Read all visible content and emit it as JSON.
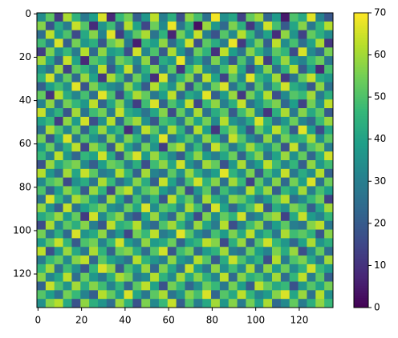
{
  "chart_data": {
    "type": "heatmap",
    "colormap": "viridis",
    "xlim": [
      -0.5,
      135.5
    ],
    "ylim": [
      135.5,
      -0.5
    ],
    "xticks": [
      0,
      20,
      40,
      60,
      80,
      100,
      120
    ],
    "yticks": [
      0,
      20,
      40,
      60,
      80,
      100,
      120
    ],
    "clim": [
      0,
      70
    ],
    "cticks": [
      0,
      10,
      20,
      30,
      40,
      50,
      60,
      70
    ],
    "z": [
      [
        34,
        52,
        12,
        61,
        45,
        28,
        39,
        66,
        8,
        47,
        55,
        21,
        37,
        63,
        30,
        44,
        17,
        58,
        49,
        26,
        69,
        35,
        41,
        14,
        53,
        60,
        23,
        38,
        5,
        50,
        42,
        67,
        31,
        19
      ],
      [
        57,
        18,
        43,
        29,
        64,
        51,
        9,
        36,
        48,
        22,
        62,
        40,
        15,
        54,
        33,
        68,
        27,
        46,
        3,
        59,
        37,
        24,
        56,
        44,
        11,
        32,
        65,
        49,
        20,
        41,
        57,
        28,
        46,
        62
      ],
      [
        25,
        63,
        38,
        50,
        16,
        42,
        57,
        31,
        67,
        13,
        35,
        52,
        61,
        27,
        45,
        7,
        55,
        39,
        64,
        30,
        18,
        51,
        33,
        62,
        47,
        26,
        40,
        9,
        58,
        36,
        14,
        53,
        44,
        34
      ],
      [
        48,
        30,
        66,
        21,
        55,
        37,
        44,
        19,
        53,
        60,
        28,
        6,
        46,
        39,
        58,
        24,
        41,
        65,
        17,
        52,
        43,
        29,
        68,
        12,
        37,
        55,
        21,
        63,
        34,
        49,
        25,
        40,
        61,
        11
      ],
      [
        13,
        56,
        35,
        47,
        29,
        62,
        24,
        58,
        38,
        42,
        17,
        65,
        32,
        50,
        20,
        61,
        36,
        22,
        54,
        45,
        10,
        63,
        39,
        27,
        57,
        44,
        31,
        52,
        46,
        16,
        66,
        33,
        23,
        55
      ],
      [
        60,
        41,
        22,
        64,
        40,
        8,
        51,
        45,
        27,
        55,
        49,
        33,
        58,
        15,
        43,
        37,
        68,
        30,
        41,
        25,
        56,
        36,
        19,
        50,
        29,
        64,
        13,
        42,
        59,
        38,
        31,
        47,
        54,
        28
      ],
      [
        36,
        27,
        59,
        14,
        52,
        46,
        33,
        63,
        20,
        39,
        64,
        26,
        44,
        56,
        31,
        52,
        11,
        47,
        60,
        34,
        28,
        48,
        61,
        41,
        17,
        35,
        57,
        25,
        45,
        62,
        20,
        39,
        8,
        49
      ],
      [
        45,
        65,
        30,
        53,
        24,
        59,
        40,
        12,
        61,
        48,
        23,
        54,
        37,
        9,
        66,
        28,
        45,
        57,
        23,
        63,
        40,
        14,
        52,
        33,
        67,
        46,
        38,
        60,
        12,
        27,
        53,
        64,
        42,
        37
      ],
      [
        21,
        39,
        48,
        35,
        67,
        18,
        56,
        43,
        34,
        29,
        58,
        41,
        20,
        62,
        47,
        35,
        59,
        18,
        50,
        31,
        54,
        66,
        27,
        45,
        22,
        51,
        30,
        48,
        65,
        43,
        36,
        19,
        58,
        26
      ],
      [
        53,
        10,
        62,
        43,
        32,
        49,
        25,
        67,
        50,
        16,
        45,
        61,
        53,
        28,
        39,
        63,
        24,
        42,
        36,
        67,
        21,
        38,
        59,
        12,
        55,
        40,
        62,
        17,
        33,
        51,
        47,
        60,
        29,
        44
      ],
      [
        31,
        58,
        26,
        55,
        46,
        37,
        63,
        22,
        41,
        57,
        34,
        13,
        48,
        66,
        22,
        50,
        38,
        64,
        15,
        47,
        58,
        30,
        44,
        64,
        26,
        37,
        49,
        56,
        23,
        39,
        14,
        55,
        35,
        63
      ],
      [
        64,
        34,
        45,
        19,
        60,
        27,
        48,
        55,
        29,
        64,
        43,
        38,
        27,
        41,
        57,
        16,
        53,
        31,
        61,
        26,
        43,
        52,
        20,
        48,
        59,
        32,
        11,
        44,
        61,
        28,
        57,
        42,
        52,
        20
      ],
      [
        40,
        47,
        13,
        58,
        38,
        65,
        17,
        35,
        62,
        24,
        52,
        60,
        35,
        19,
        49,
        44,
        28,
        56,
        40,
        55,
        33,
        62,
        36,
        30,
        42,
        66,
        45,
        25,
        37,
        54,
        32,
        24,
        47,
        59
      ],
      [
        26,
        61,
        50,
        32,
        54,
        22,
        44,
        59,
        38,
        47,
        9,
        31,
        63,
        52,
        34,
        61,
        45,
        22,
        62,
        39,
        11,
        47,
        57,
        38,
        18,
        53,
        40,
        63,
        48,
        20,
        67,
        39,
        16,
        41
      ],
      [
        55,
        19,
        41,
        66,
        28,
        51,
        36,
        26,
        57,
        33,
        56,
        45,
        24,
        42,
        67,
        27,
        39,
        51,
        33,
        58,
        44,
        25,
        64,
        51,
        33,
        24,
        58,
        29,
        55,
        43,
        46,
        61,
        34,
        52
      ],
      [
        38,
        54,
        29,
        44,
        63,
        15,
        58,
        48,
        20,
        61,
        40,
        27,
        55,
        36,
        13,
        55,
        62,
        29,
        47,
        23,
        64,
        50,
        28,
        43,
        60,
        47,
        35,
        52,
        18,
        64,
        27,
        50,
        57,
        30
      ],
      [
        47,
        31,
        63,
        37,
        23,
        46,
        40,
        65,
        43,
        19,
        53,
        66,
        38,
        59,
        46,
        33,
        20,
        44,
        58,
        38,
        30,
        41,
        54,
        22,
        45,
        57,
        26,
        40,
        59,
        35,
        53,
        23,
        44,
        65
      ],
      [
        18,
        59,
        42,
        51,
        56,
        33,
        21,
        39,
        54,
        50,
        30,
        44,
        17,
        48,
        58,
        41,
        65,
        36,
        26,
        60,
        53,
        18,
        37,
        61,
        29,
        39,
        63,
        48,
        32,
        46,
        21,
        58,
        37,
        48
      ],
      [
        62,
        37,
        25,
        60,
        41,
        64,
        52,
        29,
        33,
        62,
        46,
        22,
        60,
        31,
        26,
        52,
        35,
        59,
        43,
        31,
        39,
        67,
        45,
        34,
        56,
        20,
        49,
        36,
        64,
        28,
        43,
        34,
        62,
        22
      ],
      [
        33,
        50,
        55,
        16,
        35,
        43,
        27,
        61,
        47,
        25,
        36,
        57,
        43,
        21,
        64,
        40,
        24,
        49,
        65,
        45,
        57,
        26,
        60,
        47,
        14,
        52,
        31,
        57,
        24,
        55,
        39,
        66,
        26,
        54
      ],
      [
        50,
        22,
        39,
        57,
        47,
        20,
        59,
        45,
        15,
        56,
        63,
        34,
        51,
        57,
        38,
        29,
        55,
        17,
        36,
        52,
        22,
        48,
        35,
        29,
        62,
        44,
        59,
        21,
        46,
        38,
        60,
        30,
        49,
        39
      ],
      [
        27,
        66,
        46,
        30,
        61,
        54,
        38,
        24,
        60,
        40,
        21,
        49,
        28,
        45,
        19,
        63,
        42,
        53,
        27,
        61,
        44,
        33,
        58,
        53,
        41,
        27,
        37,
        51,
        62,
        25,
        33,
        47,
        55,
        14
      ],
      [
        58,
        36,
        21,
        64,
        27,
        39,
        48,
        56,
        35,
        31,
        54,
        41,
        66,
        34,
        52,
        47,
        31,
        61,
        48,
        20,
        66,
        40,
        23,
        38,
        50,
        64,
        19,
        43,
        35,
        56,
        49,
        21,
        41,
        60
      ],
      [
        42,
        49,
        59,
        38,
        53,
        12,
        65,
        33,
        49,
        58,
        27,
        18,
        40,
        59,
        36,
        23,
        57,
        38,
        16,
        56,
        34,
        53,
        45,
        65,
        27,
        33,
        55,
        60,
        14,
        42,
        64,
        38,
        31,
        46
      ],
      [
        16,
        61,
        33,
        52,
        44,
        57,
        30,
        19,
        63,
        44,
        48,
        62,
        32,
        24,
        50,
        60,
        45,
        28,
        59,
        41,
        29,
        62,
        17,
        31,
        48,
        58,
        25,
        39,
        52,
        30,
        27,
        57,
        63,
        28
      ],
      [
        55,
        28,
        44,
        24,
        66,
        36,
        42,
        58,
        26,
        37,
        15,
        55,
        47,
        63,
        29,
        35,
        67,
        51,
        33,
        25,
        49,
        38,
        56,
        42,
        63,
        36,
        46,
        28,
        61,
        48,
        52,
        45,
        19,
        57
      ],
      [
        38,
        52,
        64,
        46,
        20,
        50,
        55,
        31,
        47,
        65,
        39,
        30,
        58,
        38,
        42,
        54,
        22,
        40,
        46,
        63,
        57,
        16,
        44,
        59,
        22,
        51,
        65,
        47,
        37,
        23,
        40,
        61,
        36,
        44
      ],
      [
        63,
        17,
        37,
        59,
        42,
        28,
        61,
        45,
        22,
        53,
        57,
        43,
        25,
        51,
        65,
        19,
        48,
        55,
        24,
        38,
        45,
        60,
        30,
        26,
        54,
        39,
        31,
        56,
        43,
        59,
        17,
        34,
        53,
        25
      ],
      [
        29,
        47,
        53,
        33,
        57,
        63,
        23,
        52,
        40,
        34,
        26,
        62,
        45,
        36,
        30,
        58,
        37,
        31,
        62,
        51,
        20,
        43,
        64,
        50,
        36,
        45,
        17,
        62,
        29,
        50,
        56,
        42,
        28,
        60
      ],
      [
        46,
        60,
        26,
        48,
        35,
        19,
        46,
        66,
        58,
        20,
        49,
        37,
        59,
        23,
        56,
        41,
        26,
        64,
        39,
        28,
        58,
        35,
        48,
        33,
        61,
        27,
        58,
        38,
        54,
        34,
        45,
        65,
        47,
        38
      ],
      [
        57,
        32,
        41,
        63,
        25,
        54,
        37,
        28,
        44,
        61,
        55,
        29,
        34,
        62,
        45,
        33,
        60,
        42,
        57,
        44,
        32,
        63,
        24,
        57,
        44,
        49,
        34,
        60,
        25,
        46,
        63,
        29,
        52,
        21
      ],
      [
        22,
        64,
        50,
        36,
        60,
        43,
        57,
        48,
        31,
        46,
        23,
        52,
        63,
        40,
        18,
        55,
        46,
        23,
        35,
        54,
        47,
        28,
        55,
        39,
        20,
        63,
        53,
        42,
        47,
        18,
        37,
        51,
        40,
        55
      ],
      [
        51,
        39,
        27,
        55,
        47,
        31,
        21,
        62,
        53,
        38,
        66,
        41,
        28,
        52,
        61,
        27,
        36,
        57,
        49,
        66,
        23,
        51,
        42,
        63,
        46,
        32,
        38,
        57,
        66,
        41,
        59,
        26,
        62,
        35
      ],
      [
        35,
        57,
        62,
        42,
        18,
        58,
        44,
        36,
        25,
        59,
        45,
        18,
        56,
        33,
        47,
        64,
        21,
        50,
        30,
        42,
        60,
        37,
        57,
        29,
        55,
        40,
        61,
        24,
        33,
        53,
        29,
        44,
        58,
        47
      ]
    ]
  }
}
